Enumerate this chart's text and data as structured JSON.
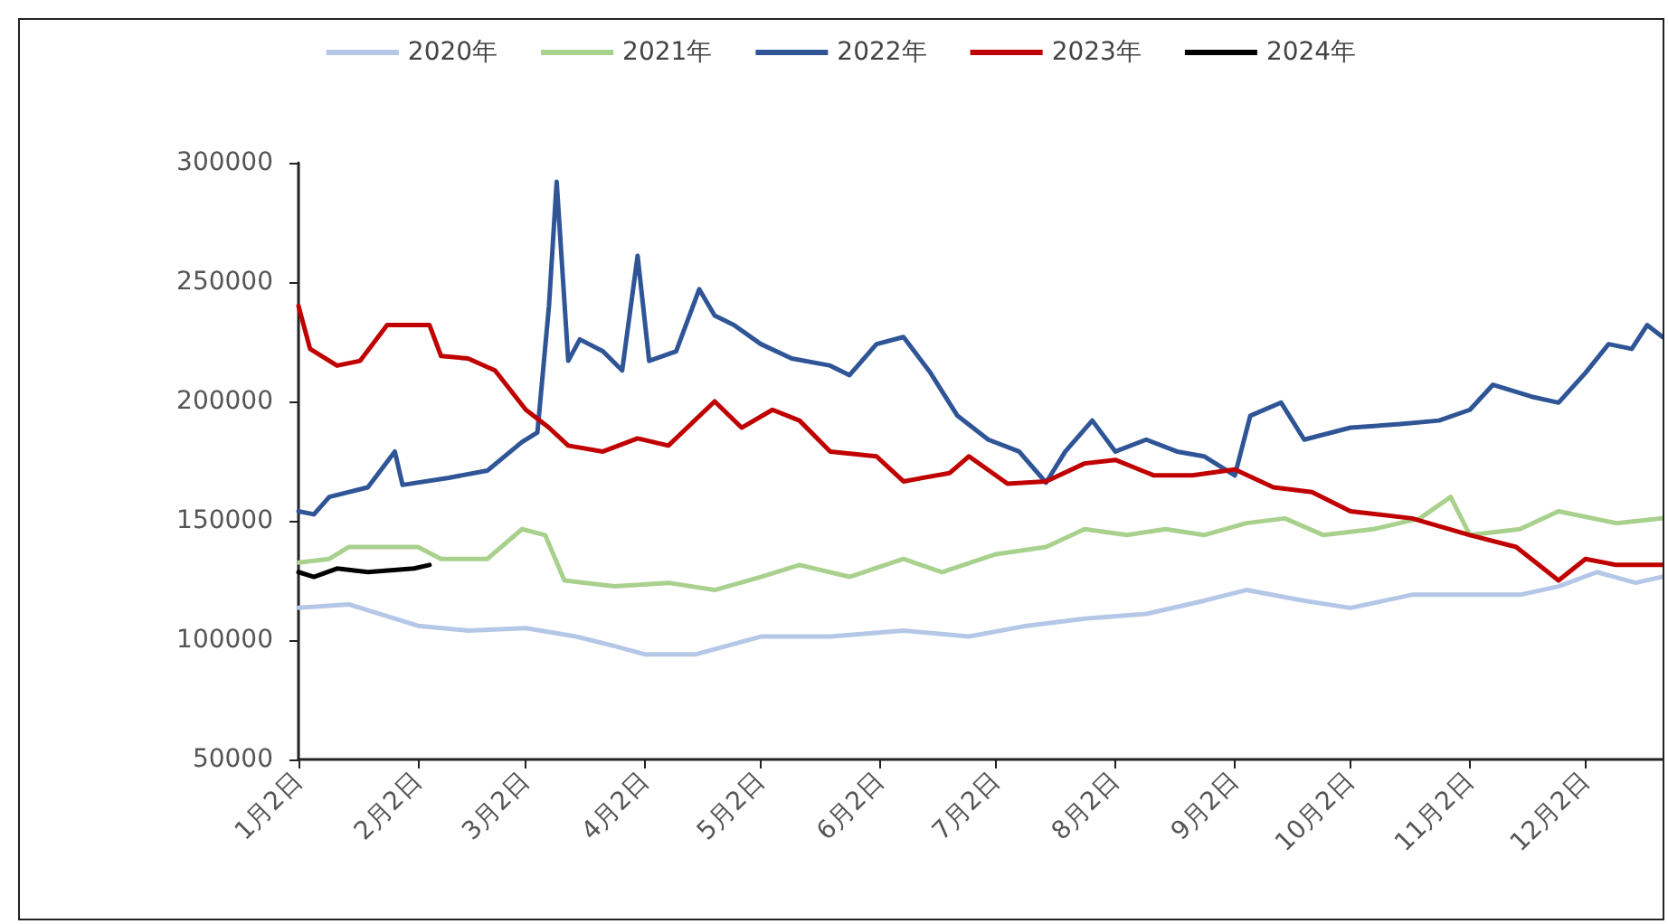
{
  "chart_data": {
    "type": "line",
    "x": [
      "--01-02",
      "--01-06",
      "--01-10",
      "--01-20",
      "--01-27",
      "--01-29",
      "--02-10",
      "--02-20",
      "--03-01",
      "--03-05",
      "--03-08",
      "--03-10",
      "--03-13",
      "--03-16",
      "--03-22",
      "--03-27",
      "--03-31",
      "--04-03",
      "--04-10",
      "--04-16",
      "--04-20",
      "--04-25",
      "--05-02",
      "--05-10",
      "--05-20",
      "--05-25",
      "--06-01",
      "--06-08",
      "--06-15",
      "--06-22",
      "--06-30",
      "--07-08",
      "--07-15",
      "--07-20",
      "--07-27",
      "--08-02",
      "--08-10",
      "--08-18",
      "--08-25",
      "--09-02",
      "--09-06",
      "--09-14",
      "--09-20",
      "--10-02",
      "--10-15",
      "--10-25",
      "--11-02",
      "--11-08",
      "--11-18",
      "--11-25",
      "--12-02",
      "--12-08",
      "--12-14",
      "--12-18",
      "--12-22"
    ],
    "xlim": [
      "--01-02",
      "--12-22"
    ],
    "xticks": [
      {
        "value": "--01-02",
        "label": "1月2日"
      },
      {
        "value": "--02-02",
        "label": "2月2日"
      },
      {
        "value": "--03-02",
        "label": "3月2日"
      },
      {
        "value": "--04-02",
        "label": "4月2日"
      },
      {
        "value": "--05-02",
        "label": "5月2日"
      },
      {
        "value": "--06-02",
        "label": "6月2日"
      },
      {
        "value": "--07-02",
        "label": "7月2日"
      },
      {
        "value": "--08-02",
        "label": "8月2日"
      },
      {
        "value": "--09-02",
        "label": "9月2日"
      },
      {
        "value": "--10-02",
        "label": "10月2日"
      },
      {
        "value": "--11-02",
        "label": "11月2日"
      },
      {
        "value": "--12-02",
        "label": "12月2日"
      }
    ],
    "ylim": [
      50000,
      300000
    ],
    "yticks": [
      50000,
      100000,
      150000,
      200000,
      250000,
      300000
    ],
    "grid": false,
    "legend": "top",
    "marker": "none",
    "series": [
      {
        "name": "2020年",
        "color": "#b4c7e7",
        "x": [
          "--01-02",
          "--01-15",
          "--02-02",
          "--02-15",
          "--03-02",
          "--03-15",
          "--03-25",
          "--04-02",
          "--04-15",
          "--05-02",
          "--05-20",
          "--06-08",
          "--06-25",
          "--07-10",
          "--07-25",
          "--08-10",
          "--08-25",
          "--09-05",
          "--09-20",
          "--10-02",
          "--10-18",
          "--11-02",
          "--11-15",
          "--11-25",
          "--12-05",
          "--12-15",
          "--12-22"
        ],
        "values": [
          113500,
          115000,
          106000,
          104000,
          105000,
          101500,
          97500,
          94000,
          94000,
          101500,
          101500,
          104000,
          101500,
          106000,
          109000,
          111000,
          116500,
          121000,
          116500,
          113500,
          119000,
          119000,
          119000,
          122500,
          128500,
          124000,
          126500
        ]
      },
      {
        "name": "2021年",
        "color": "#a9d18e",
        "x": [
          "--01-02",
          "--01-10",
          "--01-15",
          "--02-02",
          "--02-08",
          "--02-20",
          "--03-01",
          "--03-07",
          "--03-12",
          "--03-25",
          "--04-08",
          "--04-20",
          "--05-02",
          "--05-12",
          "--05-25",
          "--06-08",
          "--06-18",
          "--07-02",
          "--07-15",
          "--07-25",
          "--08-05",
          "--08-15",
          "--08-25",
          "--09-05",
          "--09-15",
          "--09-25",
          "--10-08",
          "--10-20",
          "--10-28",
          "--11-02",
          "--11-15",
          "--11-25",
          "--12-10",
          "--12-22"
        ],
        "values": [
          132500,
          134000,
          139000,
          139000,
          134000,
          134000,
          146500,
          144000,
          125000,
          122500,
          124000,
          121000,
          126500,
          131500,
          126500,
          134000,
          128500,
          136000,
          139000,
          146500,
          144000,
          146500,
          144000,
          149000,
          151000,
          144000,
          146500,
          151000,
          160000,
          144000,
          146500,
          154000,
          149000,
          151000
        ]
      },
      {
        "name": "2022年",
        "color": "#2f5597",
        "values": [
          154000,
          152700,
          160000,
          164000,
          179000,
          165000,
          168000,
          171000,
          183000,
          187000,
          240000,
          292000,
          217000,
          226000,
          221000,
          213000,
          261000,
          217000,
          221000,
          247000,
          236000,
          232000,
          224000,
          218000,
          215000,
          211000,
          224000,
          227000,
          212000,
          194000,
          184000,
          179000,
          166000,
          179000,
          192000,
          179000,
          184000,
          179000,
          177000,
          169000,
          194000,
          199500,
          184000,
          189000,
          190500,
          192000,
          196500,
          207000,
          202000,
          199500,
          212000,
          224000,
          222000,
          232000,
          227000
        ]
      },
      {
        "name": "2023年",
        "color": "#c00000",
        "x": [
          "--01-02",
          "--01-05",
          "--01-12",
          "--01-18",
          "--01-25",
          "--02-05",
          "--02-08",
          "--02-15",
          "--02-22",
          "--03-02",
          "--03-08",
          "--03-13",
          "--03-22",
          "--03-31",
          "--04-08",
          "--04-20",
          "--04-27",
          "--05-05",
          "--05-12",
          "--05-20",
          "--06-01",
          "--06-08",
          "--06-20",
          "--06-25",
          "--07-05",
          "--07-15",
          "--07-25",
          "--08-02",
          "--08-12",
          "--08-22",
          "--09-02",
          "--09-12",
          "--09-22",
          "--10-02",
          "--10-18",
          "--11-02",
          "--11-14",
          "--11-25",
          "--12-02",
          "--12-10",
          "--12-22"
        ],
        "values": [
          240000,
          222000,
          215000,
          217000,
          232000,
          232000,
          219000,
          218000,
          213000,
          196500,
          189000,
          181500,
          179000,
          184500,
          181500,
          200000,
          189000,
          196500,
          192000,
          179000,
          177000,
          166500,
          170000,
          177000,
          165500,
          166500,
          174000,
          175500,
          169000,
          169000,
          171500,
          164000,
          162000,
          154000,
          151000,
          144000,
          139000,
          125000,
          134000,
          131500,
          131500
        ]
      },
      {
        "name": "2024年",
        "color": "#000000",
        "x": [
          "--01-02",
          "--01-06",
          "--01-12",
          "--01-20",
          "--02-01",
          "--02-05"
        ],
        "values": [
          128500,
          126500,
          130000,
          128500,
          130000,
          131500
        ]
      }
    ]
  }
}
